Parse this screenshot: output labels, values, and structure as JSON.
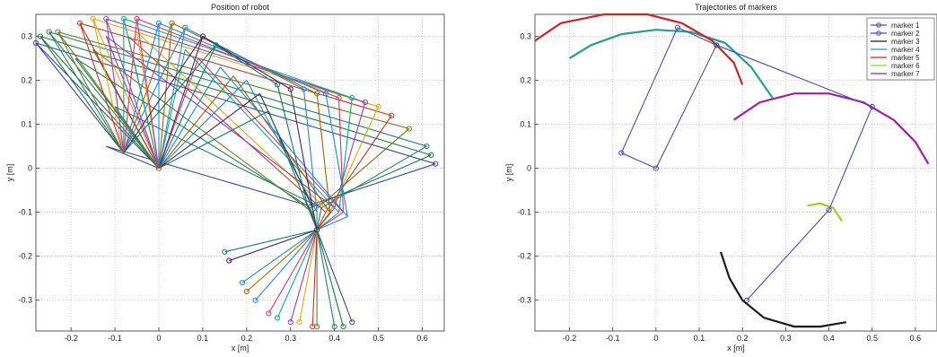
{
  "chart_data": [
    {
      "type": "line",
      "title": "Position of robot",
      "xlabel": "x [m]",
      "ylabel": "y [m]",
      "xlim": [
        -0.28,
        0.65
      ],
      "ylim": [
        -0.37,
        0.35
      ],
      "xticks": [
        -0.2,
        -0.1,
        0,
        0.1,
        0.2,
        0.3,
        0.4,
        0.5,
        0.6
      ],
      "xticklabels": [
        "-0.2",
        "-0.1",
        "0",
        "0.1",
        "0.2",
        "0.3",
        "0.4",
        "0.5",
        "0.6"
      ],
      "yticks": [
        0.3,
        0.2,
        0.1,
        0,
        -0.1,
        -0.2,
        -0.3
      ],
      "yticklabels": [
        "0.3",
        "0.2",
        "0.1",
        "0",
        "-0.1",
        "-0.2",
        "-0.3"
      ],
      "grid": true,
      "anchor": [
        0,
        0
      ],
      "anchor_b": [
        -0.08,
        0.035
      ],
      "hub": [
        0.36,
        -0.14
      ],
      "poses": [
        {
          "color": "#3b49a0",
          "top": [
            -0.28,
            0.285
          ],
          "mid": [
            -0.12,
            0.05
          ],
          "far": [
            0.63,
            0.01
          ],
          "elbow": [
            0.34,
            -0.085
          ],
          "foot": [
            0.44,
            -0.35
          ]
        },
        {
          "color": "#1f7a3a",
          "top": [
            -0.27,
            0.3
          ],
          "mid": [
            -0.19,
            0.25
          ],
          "far": [
            0.62,
            0.03
          ],
          "elbow": [
            0.345,
            -0.09
          ],
          "foot": [
            0.42,
            -0.36
          ]
        },
        {
          "color": "#2d7d6f",
          "top": [
            -0.25,
            0.31
          ],
          "mid": [
            -0.1,
            0.14
          ],
          "far": [
            0.61,
            0.05
          ],
          "elbow": [
            0.37,
            -0.09
          ],
          "foot": [
            0.4,
            -0.36
          ]
        },
        {
          "color": "#6b7b2a",
          "top": [
            -0.23,
            0.31
          ],
          "mid": [
            -0.15,
            0.27
          ],
          "far": [
            0.57,
            0.09
          ],
          "elbow": [
            0.35,
            -0.1
          ],
          "foot": [
            0.36,
            -0.36
          ]
        },
        {
          "color": "#c0392b",
          "top": [
            -0.18,
            0.33
          ],
          "mid": [
            -0.07,
            0.3
          ],
          "far": [
            0.53,
            0.12
          ],
          "elbow": [
            0.38,
            -0.1
          ],
          "foot": [
            0.35,
            -0.36
          ]
        },
        {
          "color": "#e0a81a",
          "top": [
            -0.15,
            0.34
          ],
          "mid": [
            -0.05,
            0.31
          ],
          "far": [
            0.5,
            0.14
          ],
          "elbow": [
            0.39,
            -0.1
          ],
          "foot": [
            0.32,
            -0.35
          ]
        },
        {
          "color": "#8e44ad",
          "top": [
            -0.12,
            0.34
          ],
          "mid": [
            -0.12,
            0.3
          ],
          "far": [
            0.47,
            0.15
          ],
          "elbow": [
            0.4,
            -0.09
          ],
          "foot": [
            0.3,
            -0.35
          ]
        },
        {
          "color": "#17a589",
          "top": [
            -0.08,
            0.34
          ],
          "mid": [
            0.06,
            0.27
          ],
          "far": [
            0.44,
            0.16
          ],
          "elbow": [
            0.41,
            -0.1
          ],
          "foot": [
            0.27,
            -0.34
          ]
        },
        {
          "color": "#d6336c",
          "top": [
            -0.05,
            0.34
          ],
          "mid": [
            0.09,
            0.25
          ],
          "far": [
            0.41,
            0.16
          ],
          "elbow": [
            0.42,
            -0.1
          ],
          "foot": [
            0.25,
            -0.33
          ]
        },
        {
          "color": "#1e88e5",
          "top": [
            0.0,
            0.33
          ],
          "mid": [
            0.14,
            0.23
          ],
          "far": [
            0.38,
            0.17
          ],
          "elbow": [
            0.43,
            -0.11
          ],
          "foot": [
            0.22,
            -0.3
          ]
        },
        {
          "color": "#9c640c",
          "top": [
            0.03,
            0.33
          ],
          "mid": [
            0.17,
            0.21
          ],
          "far": [
            0.36,
            0.17
          ],
          "elbow": [
            0.39,
            -0.1
          ],
          "foot": [
            0.2,
            -0.28
          ]
        },
        {
          "color": "#2e86c1",
          "top": [
            0.06,
            0.32
          ],
          "mid": [
            0.2,
            0.2
          ],
          "far": [
            0.33,
            0.18
          ],
          "elbow": [
            0.36,
            -0.1
          ],
          "foot": [
            0.19,
            -0.26
          ]
        },
        {
          "color": "#4a235a",
          "top": [
            0.1,
            0.3
          ],
          "mid": [
            0.23,
            0.17
          ],
          "far": [
            0.3,
            0.18
          ],
          "elbow": [
            0.35,
            -0.09
          ],
          "foot": [
            0.16,
            -0.21
          ]
        },
        {
          "color": "#117a65",
          "top": [
            0.13,
            0.28
          ],
          "mid": [
            0.25,
            0.13
          ],
          "far": [
            0.27,
            0.19
          ],
          "elbow": [
            0.34,
            -0.09
          ],
          "foot": [
            0.15,
            -0.19
          ]
        }
      ]
    },
    {
      "type": "line",
      "title": "Trajectories of markers",
      "xlabel": "x [m]",
      "ylabel": "y [m]",
      "xlim": [
        -0.28,
        0.65
      ],
      "ylim": [
        -0.37,
        0.35
      ],
      "xticks": [
        -0.2,
        -0.1,
        0,
        0.1,
        0.2,
        0.3,
        0.4,
        0.5,
        0.6
      ],
      "xticklabels": [
        "-0.2",
        "-0.1",
        "0",
        "0.1",
        "0.2",
        "0.3",
        "0.4",
        "0.5",
        "0.6"
      ],
      "yticks": [
        0.3,
        0.2,
        0.1,
        0,
        -0.1,
        -0.2,
        -0.3
      ],
      "yticklabels": [
        "0.3",
        "0.2",
        "0.1",
        "0",
        "-0.1",
        "-0.2",
        "-0.3"
      ],
      "grid": true,
      "legend_position": "top-right",
      "series": [
        {
          "name": "marker 1",
          "color": "#4a4ab8",
          "marker": "o",
          "points": [
            [
              -0.08,
              0.035
            ],
            [
              0.05,
              0.32
            ],
            [
              0.14,
              0.28
            ],
            [
              0,
              0
            ]
          ]
        },
        {
          "name": "marker 2",
          "color": "#4a4ab8",
          "marker": "o",
          "points": [
            [
              0.14,
              0.28
            ],
            [
              0.5,
              0.14
            ],
            [
              0.4,
              -0.095
            ],
            [
              0.21,
              -0.3
            ]
          ]
        },
        {
          "name": "marker 3",
          "color": "#1a1a1a",
          "marker": "",
          "points": [
            [
              0.15,
              -0.19
            ],
            [
              0.17,
              -0.25
            ],
            [
              0.2,
              -0.3
            ],
            [
              0.25,
              -0.34
            ],
            [
              0.32,
              -0.36
            ],
            [
              0.38,
              -0.36
            ],
            [
              0.44,
              -0.35
            ]
          ]
        },
        {
          "name": "marker 4",
          "color": "#2a9d8f",
          "marker": "",
          "points": [
            [
              -0.2,
              0.25
            ],
            [
              -0.15,
              0.28
            ],
            [
              -0.08,
              0.305
            ],
            [
              0.0,
              0.315
            ],
            [
              0.08,
              0.31
            ],
            [
              0.16,
              0.285
            ],
            [
              0.22,
              0.23
            ],
            [
              0.27,
              0.16
            ]
          ]
        },
        {
          "name": "marker 5",
          "color": "#c62828",
          "marker": "",
          "points": [
            [
              -0.28,
              0.29
            ],
            [
              -0.22,
              0.33
            ],
            [
              -0.12,
              0.35
            ],
            [
              -0.02,
              0.35
            ],
            [
              0.06,
              0.33
            ],
            [
              0.13,
              0.29
            ],
            [
              0.18,
              0.24
            ],
            [
              0.2,
              0.19
            ]
          ]
        },
        {
          "name": "marker 6",
          "color": "#9acd32",
          "marker": "",
          "points": [
            [
              0.35,
              -0.085
            ],
            [
              0.38,
              -0.08
            ],
            [
              0.41,
              -0.09
            ],
            [
              0.43,
              -0.12
            ]
          ]
        },
        {
          "name": "marker 7",
          "color": "#a020a0",
          "marker": "",
          "points": [
            [
              0.18,
              0.11
            ],
            [
              0.24,
              0.15
            ],
            [
              0.32,
              0.17
            ],
            [
              0.4,
              0.17
            ],
            [
              0.48,
              0.15
            ],
            [
              0.55,
              0.11
            ],
            [
              0.6,
              0.06
            ],
            [
              0.63,
              0.01
            ]
          ]
        }
      ],
      "frame": [
        [
          -0.08,
          0.035
        ],
        [
          0.05,
          0.32
        ],
        [
          0.14,
          0.28
        ],
        [
          0,
          0
        ]
      ]
    }
  ]
}
